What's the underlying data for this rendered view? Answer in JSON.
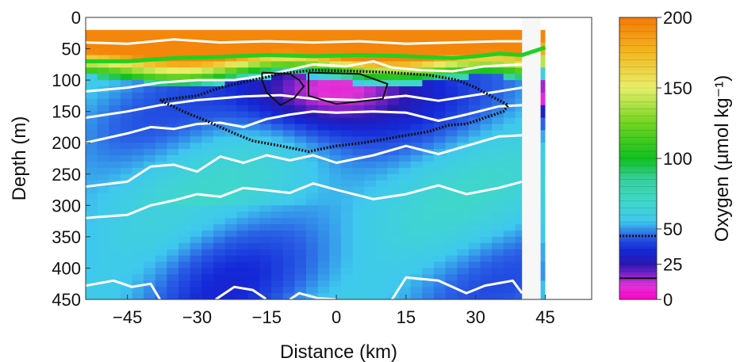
{
  "chart_data": {
    "type": "heatmap",
    "xlabel": "Distance (km)",
    "ylabel": "Depth (m)",
    "xlim": [
      -54,
      55
    ],
    "ylim": [
      450,
      0
    ],
    "x_ticks": [
      -45,
      -30,
      -15,
      0,
      15,
      30,
      45
    ],
    "y_ticks": [
      0,
      50,
      100,
      150,
      200,
      250,
      300,
      350,
      400,
      450
    ],
    "x_tick_labels": [
      "−45",
      "−30",
      "−15",
      "0",
      "15",
      "30",
      "45"
    ],
    "y_tick_labels": [
      "0",
      "50",
      "100",
      "150",
      "200",
      "250",
      "300",
      "350",
      "400",
      "450"
    ],
    "colorbar": {
      "label": "Oxygen (µmol kg⁻¹)",
      "range": [
        0,
        200
      ],
      "ticks": [
        0,
        25,
        50,
        100,
        150,
        200
      ],
      "tick_labels": [
        "0",
        "25",
        "50",
        "100",
        "150",
        "200"
      ],
      "colors": [
        {
          "value": 0,
          "color": "#ff00cc"
        },
        {
          "value": 10,
          "color": "#e033d8"
        },
        {
          "value": 18,
          "color": "#7a22c8"
        },
        {
          "value": 25,
          "color": "#2a18b0"
        },
        {
          "value": 35,
          "color": "#1428d8"
        },
        {
          "value": 45,
          "color": "#2a62e6"
        },
        {
          "value": 55,
          "color": "#3fc8ee"
        },
        {
          "value": 70,
          "color": "#3fd8c8"
        },
        {
          "value": 85,
          "color": "#37cf9c"
        },
        {
          "value": 100,
          "color": "#10c020"
        },
        {
          "value": 125,
          "color": "#70d420"
        },
        {
          "value": 150,
          "color": "#e8ef6a"
        },
        {
          "value": 175,
          "color": "#f2b820"
        },
        {
          "value": 200,
          "color": "#f57a05"
        }
      ]
    },
    "profile_depths": [
      20,
      40,
      60,
      80,
      100,
      120,
      140,
      160,
      180,
      200,
      220,
      250,
      280,
      300,
      330,
      360,
      390,
      420,
      450
    ],
    "profile_oxygen": [
      195,
      180,
      140,
      60,
      15,
      8,
      30,
      45,
      52,
      56,
      60,
      62,
      60,
      58,
      55,
      52,
      50,
      54,
      58
    ],
    "contours": {
      "omz_core_15umol": [
        [
          [
            -16,
            88
          ],
          [
            -10,
            90
          ],
          [
            -8,
            100
          ],
          [
            -7,
            110
          ],
          [
            -9,
            128
          ],
          [
            -12,
            140
          ],
          [
            -15,
            120
          ],
          [
            -16,
            100
          ],
          [
            -16,
            88
          ]
        ],
        [
          [
            -6,
            88
          ],
          [
            5,
            90
          ],
          [
            11,
            106
          ],
          [
            10,
            130
          ],
          [
            0,
            138
          ],
          [
            -6,
            125
          ],
          [
            -6,
            100
          ],
          [
            -6,
            88
          ]
        ]
      ],
      "dashed_oxycline_45umol": [
        [
          [
            -38,
            132
          ],
          [
            -30,
            125
          ],
          [
            -25,
            112
          ],
          [
            -18,
            100
          ],
          [
            -12,
            90
          ],
          [
            -5,
            84
          ],
          [
            5,
            86
          ],
          [
            12,
            88
          ],
          [
            20,
            92
          ],
          [
            26,
            100
          ],
          [
            30,
            112
          ],
          [
            34,
            128
          ],
          [
            37,
            140
          ],
          [
            36,
            150
          ],
          [
            32,
            160
          ],
          [
            28,
            170
          ],
          [
            24,
            172
          ],
          [
            20,
            182
          ],
          [
            12,
            192
          ],
          [
            6,
            200
          ],
          [
            0,
            205
          ],
          [
            -6,
            214
          ],
          [
            -12,
            205
          ],
          [
            -18,
            197
          ],
          [
            -22,
            185
          ],
          [
            -28,
            165
          ],
          [
            -33,
            150
          ],
          [
            -38,
            132
          ]
        ]
      ],
      "green_isopycnal": [
        [
          -54,
          70
        ],
        [
          -45,
          70
        ],
        [
          -35,
          65
        ],
        [
          -25,
          63
        ],
        [
          -15,
          60
        ],
        [
          -5,
          62
        ],
        [
          5,
          60
        ],
        [
          15,
          62
        ],
        [
          25,
          65
        ],
        [
          30,
          62
        ],
        [
          35,
          58
        ],
        [
          40,
          60
        ],
        [
          45,
          48
        ]
      ],
      "white_isopycnals": [
        [
          [
            -54,
            40
          ],
          [
            -45,
            42
          ],
          [
            -35,
            35
          ],
          [
            -25,
            40
          ],
          [
            -15,
            38
          ],
          [
            -5,
            40
          ],
          [
            5,
            38
          ],
          [
            15,
            42
          ],
          [
            25,
            40
          ],
          [
            35,
            38
          ],
          [
            40,
            38
          ]
        ],
        [
          [
            -54,
            118
          ],
          [
            -45,
            112
          ],
          [
            -38,
            104
          ],
          [
            -30,
            100
          ],
          [
            -22,
            100
          ],
          [
            -15,
            92
          ],
          [
            -8,
            80
          ],
          [
            -5,
            75
          ],
          [
            2,
            78
          ],
          [
            8,
            70
          ],
          [
            12,
            80
          ],
          [
            18,
            84
          ],
          [
            25,
            86
          ],
          [
            32,
            78
          ],
          [
            40,
            75
          ]
        ],
        [
          [
            -54,
            160
          ],
          [
            -45,
            150
          ],
          [
            -38,
            140
          ],
          [
            -30,
            132
          ],
          [
            -20,
            126
          ],
          [
            -12,
            124
          ],
          [
            -5,
            130
          ],
          [
            5,
            132
          ],
          [
            15,
            125
          ],
          [
            22,
            133
          ],
          [
            28,
            126
          ],
          [
            35,
            118
          ],
          [
            40,
            112
          ]
        ],
        [
          [
            -54,
            200
          ],
          [
            -45,
            185
          ],
          [
            -40,
            175
          ],
          [
            -35,
            178
          ],
          [
            -30,
            170
          ],
          [
            -25,
            168
          ],
          [
            -20,
            175
          ],
          [
            -15,
            162
          ],
          [
            -10,
            155
          ],
          [
            -5,
            150
          ],
          [
            0,
            152
          ],
          [
            8,
            150
          ],
          [
            15,
            152
          ],
          [
            22,
            165
          ],
          [
            28,
            155
          ],
          [
            35,
            142
          ],
          [
            40,
            140
          ]
        ],
        [
          [
            -54,
            270
          ],
          [
            -45,
            262
          ],
          [
            -40,
            238
          ],
          [
            -35,
            235
          ],
          [
            -30,
            246
          ],
          [
            -25,
            222
          ],
          [
            -20,
            232
          ],
          [
            -15,
            220
          ],
          [
            -10,
            228
          ],
          [
            -5,
            220
          ],
          [
            0,
            232
          ],
          [
            8,
            220
          ],
          [
            15,
            205
          ],
          [
            22,
            218
          ],
          [
            28,
            205
          ],
          [
            35,
            190
          ],
          [
            40,
            188
          ]
        ],
        [
          [
            -54,
            320
          ],
          [
            -45,
            315
          ],
          [
            -40,
            300
          ],
          [
            -35,
            292
          ],
          [
            -30,
            282
          ],
          [
            -25,
            286
          ],
          [
            -20,
            272
          ],
          [
            -15,
            276
          ],
          [
            -10,
            280
          ],
          [
            -5,
            265
          ],
          [
            0,
            275
          ],
          [
            8,
            290
          ],
          [
            15,
            282
          ],
          [
            22,
            268
          ],
          [
            28,
            282
          ],
          [
            35,
            272
          ],
          [
            40,
            262
          ]
        ],
        [
          [
            -54,
            428
          ],
          [
            -48,
            420
          ],
          [
            -44,
            430
          ],
          [
            -40,
            425
          ],
          [
            -38,
            450
          ]
        ],
        [
          [
            -26,
            450
          ],
          [
            -22,
            430
          ],
          [
            -18,
            435
          ],
          [
            -15,
            450
          ]
        ],
        [
          [
            -10,
            450
          ],
          [
            -8,
            440
          ],
          [
            -4,
            448
          ],
          [
            0,
            450
          ]
        ],
        [
          [
            12,
            450
          ],
          [
            15,
            415
          ],
          [
            22,
            420
          ],
          [
            28,
            440
          ],
          [
            32,
            428
          ],
          [
            38,
            420
          ],
          [
            40,
            440
          ]
        ]
      ]
    }
  }
}
